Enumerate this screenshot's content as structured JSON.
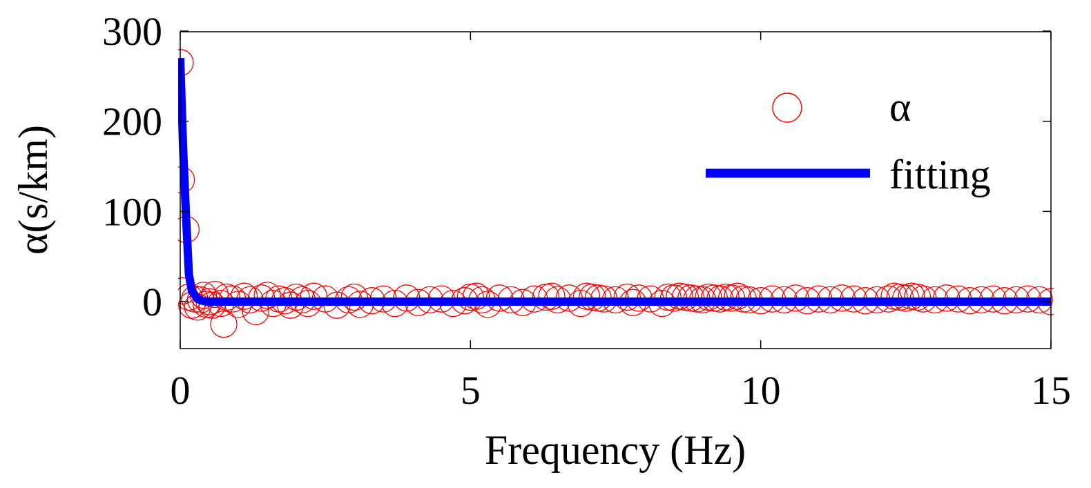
{
  "chart_data": {
    "type": "scatter",
    "title": "",
    "xlabel": "Frequency (Hz)",
    "ylabel": "α(s/km)",
    "xlim": [
      0,
      15
    ],
    "ylim": [
      -50,
      300
    ],
    "xticks": [
      0,
      5,
      10,
      15
    ],
    "xtick_labels": [
      "0",
      "5",
      "10",
      "15"
    ],
    "yticks": [
      0,
      100,
      200,
      300
    ],
    "ytick_labels": [
      "0",
      "100",
      "200",
      "300"
    ],
    "grid": false,
    "legend_position": "top-right",
    "colors": {
      "alpha": "#ff0000",
      "fitting": "#0000ff",
      "axes": "#000000"
    },
    "series": [
      {
        "name": "α",
        "kind": "marker-circle",
        "x": [
          0.0,
          0.02,
          0.1,
          0.05,
          0.15,
          0.2,
          0.25,
          0.3,
          0.35,
          0.4,
          0.45,
          0.5,
          0.55,
          0.6,
          0.7,
          0.75,
          0.8,
          0.9,
          1.0,
          1.1,
          1.2,
          1.3,
          1.4,
          1.5,
          1.6,
          1.7,
          1.8,
          1.9,
          2.0,
          2.1,
          2.2,
          2.3,
          2.5,
          2.7,
          2.9,
          3.0,
          3.1,
          3.3,
          3.5,
          3.7,
          3.9,
          4.1,
          4.3,
          4.5,
          4.7,
          4.9,
          5.0,
          5.1,
          5.2,
          5.3,
          5.5,
          5.7,
          5.9,
          6.1,
          6.3,
          6.4,
          6.5,
          6.7,
          6.9,
          7.0,
          7.1,
          7.2,
          7.3,
          7.5,
          7.7,
          7.8,
          7.9,
          8.1,
          8.3,
          8.4,
          8.5,
          8.6,
          8.7,
          8.8,
          8.9,
          9.0,
          9.1,
          9.2,
          9.3,
          9.4,
          9.5,
          9.6,
          9.7,
          9.8,
          10.0,
          10.2,
          10.4,
          10.6,
          10.8,
          11.0,
          11.2,
          11.4,
          11.6,
          11.8,
          12.0,
          12.2,
          12.3,
          12.4,
          12.5,
          12.6,
          12.7,
          12.8,
          13.0,
          13.2,
          13.4,
          13.6,
          13.8,
          14.0,
          14.2,
          14.4,
          14.6,
          14.8,
          15.0
        ],
        "y": [
          265,
          135,
          80,
          12,
          5,
          -4,
          3,
          -6,
          2,
          7,
          -3,
          0,
          -4,
          8,
          -2,
          -25,
          5,
          3,
          -3,
          6,
          2,
          -11,
          4,
          7,
          -2,
          3,
          1,
          -4,
          5,
          2,
          -2,
          6,
          3,
          -4,
          2,
          5,
          -3,
          1,
          3,
          -2,
          4,
          -1,
          2,
          3,
          -2,
          1,
          5,
          6,
          2,
          -3,
          4,
          2,
          -1,
          3,
          5,
          6,
          2,
          4,
          -2,
          6,
          5,
          4,
          3,
          2,
          5,
          -1,
          4,
          3,
          -2,
          5,
          4,
          6,
          5,
          4,
          3,
          2,
          5,
          4,
          3,
          5,
          4,
          6,
          3,
          2,
          1,
          3,
          2,
          4,
          1,
          3,
          2,
          4,
          3,
          1,
          2,
          3,
          6,
          5,
          4,
          6,
          5,
          3,
          2,
          4,
          3,
          1,
          2,
          3,
          1,
          2,
          3,
          2,
          0
        ]
      },
      {
        "name": "fitting",
        "kind": "line",
        "x": [
          0.0,
          0.05,
          0.1,
          0.15,
          0.2,
          0.3,
          0.4,
          0.5,
          1,
          2,
          5,
          10,
          15
        ],
        "y": [
          270,
          170,
          95,
          30,
          12,
          3,
          0.5,
          0,
          0,
          0,
          0,
          0,
          0
        ]
      }
    ]
  }
}
